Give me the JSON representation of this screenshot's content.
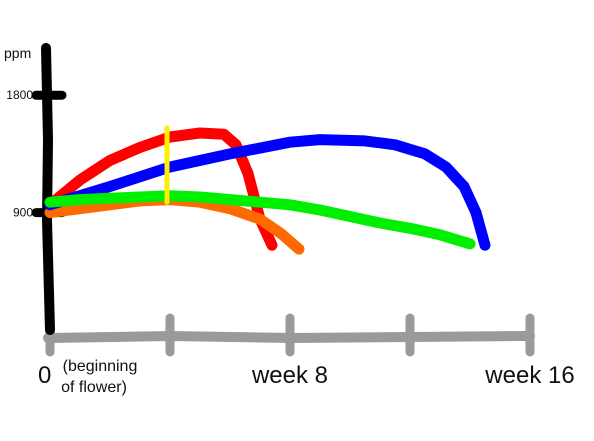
{
  "chart_data": {
    "type": "line",
    "title": "",
    "ylabel": "ppm",
    "xlabel": "",
    "xlim": [
      0,
      16
    ],
    "ylim": [
      0,
      2300
    ],
    "grid": false,
    "legend": "none",
    "y_ticks": [
      {
        "value": 1800,
        "label": "1800"
      },
      {
        "value": 900,
        "label": "900"
      }
    ],
    "x_ticks": [
      {
        "value": 0,
        "label": "0",
        "note_line1": "(beginning",
        "note_line2": "of flower)"
      },
      {
        "value": 4,
        "label": ""
      },
      {
        "value": 8,
        "label": "week 8"
      },
      {
        "value": 12,
        "label": ""
      },
      {
        "value": 16,
        "label": "week 16"
      }
    ],
    "series": [
      {
        "color": "#ff0000",
        "x": [
          0,
          1,
          2,
          3,
          4,
          5,
          5.8,
          6.2,
          6.6,
          7.0,
          7.4
        ],
        "y": [
          960,
          1150,
          1300,
          1400,
          1480,
          1510,
          1500,
          1420,
          1200,
          850,
          650
        ]
      },
      {
        "color": "#ff6a00",
        "x": [
          0,
          1,
          2,
          3,
          4,
          5,
          6,
          7,
          7.7,
          8.3
        ],
        "y": [
          900,
          930,
          960,
          990,
          1000,
          980,
          930,
          850,
          740,
          620
        ]
      },
      {
        "color": "#0000ff",
        "x": [
          0,
          2,
          4,
          6,
          8,
          9,
          10.5,
          11.5,
          12.5,
          13.2,
          13.8,
          14.2,
          14.5
        ],
        "y": [
          960,
          1100,
          1250,
          1350,
          1440,
          1460,
          1450,
          1420,
          1350,
          1250,
          1100,
          900,
          650
        ]
      },
      {
        "color": "#00ee00",
        "x": [
          0,
          1,
          2,
          3,
          4,
          5,
          6,
          7,
          8,
          9,
          10,
          11,
          12,
          13,
          14
        ],
        "y": [
          980,
          1000,
          1010,
          1020,
          1030,
          1020,
          1000,
          980,
          960,
          920,
          870,
          820,
          780,
          730,
          660
        ]
      }
    ],
    "annotations": [
      {
        "type": "vertical-marker",
        "x": 3.9,
        "y_from": 980,
        "y_to": 1550,
        "color": "#ffee00"
      }
    ],
    "colors": {
      "y_axis": "#000000",
      "x_axis": "#9a9a9a",
      "background": "#ffffff"
    }
  }
}
